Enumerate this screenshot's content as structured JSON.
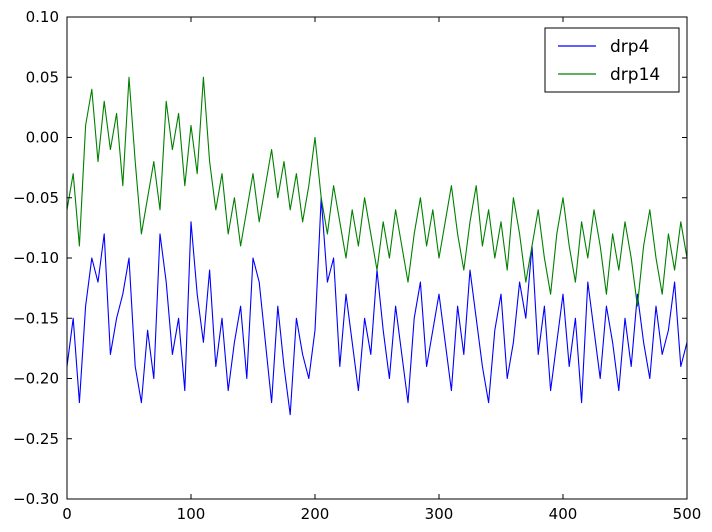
{
  "chart_data": {
    "type": "line",
    "title": "",
    "xlabel": "",
    "ylabel": "",
    "xlim": [
      0,
      500
    ],
    "ylim": [
      -0.3,
      0.1
    ],
    "x_ticks": [
      0,
      100,
      200,
      300,
      400,
      500
    ],
    "y_ticks": [
      -0.3,
      -0.25,
      -0.2,
      -0.15,
      -0.1,
      -0.05,
      0.0,
      0.05,
      0.1
    ],
    "x_tick_labels": [
      "0",
      "100",
      "200",
      "300",
      "400",
      "500"
    ],
    "y_tick_labels": [
      "−0.30",
      "−0.25",
      "−0.20",
      "−0.15",
      "−0.10",
      "−0.05",
      "0.00",
      "0.05",
      "0.10"
    ],
    "grid": false,
    "legend_position": "top-right",
    "sample_every": 5,
    "series": [
      {
        "name": "drp4",
        "color": "#0000ff",
        "x": [
          0,
          5,
          10,
          15,
          20,
          25,
          30,
          35,
          40,
          45,
          50,
          55,
          60,
          65,
          70,
          75,
          80,
          85,
          90,
          95,
          100,
          105,
          110,
          115,
          120,
          125,
          130,
          135,
          140,
          145,
          150,
          155,
          160,
          165,
          170,
          175,
          180,
          185,
          190,
          195,
          200,
          205,
          210,
          215,
          220,
          225,
          230,
          235,
          240,
          245,
          250,
          255,
          260,
          265,
          270,
          275,
          280,
          285,
          290,
          295,
          300,
          305,
          310,
          315,
          320,
          325,
          330,
          335,
          340,
          345,
          350,
          355,
          360,
          365,
          370,
          375,
          380,
          385,
          390,
          395,
          400,
          405,
          410,
          415,
          420,
          425,
          430,
          435,
          440,
          445,
          450,
          455,
          460,
          465,
          470,
          475,
          480,
          485,
          490,
          495,
          500
        ],
        "values": [
          -0.19,
          -0.15,
          -0.22,
          -0.14,
          -0.1,
          -0.12,
          -0.08,
          -0.18,
          -0.15,
          -0.13,
          -0.1,
          -0.19,
          -0.22,
          -0.16,
          -0.2,
          -0.08,
          -0.12,
          -0.18,
          -0.15,
          -0.21,
          -0.07,
          -0.13,
          -0.17,
          -0.11,
          -0.19,
          -0.15,
          -0.21,
          -0.17,
          -0.14,
          -0.2,
          -0.1,
          -0.12,
          -0.17,
          -0.22,
          -0.14,
          -0.19,
          -0.23,
          -0.15,
          -0.18,
          -0.2,
          -0.16,
          -0.05,
          -0.12,
          -0.1,
          -0.19,
          -0.13,
          -0.17,
          -0.21,
          -0.15,
          -0.18,
          -0.11,
          -0.16,
          -0.2,
          -0.14,
          -0.18,
          -0.22,
          -0.15,
          -0.12,
          -0.19,
          -0.16,
          -0.13,
          -0.17,
          -0.21,
          -0.14,
          -0.18,
          -0.11,
          -0.15,
          -0.19,
          -0.22,
          -0.16,
          -0.13,
          -0.2,
          -0.17,
          -0.12,
          -0.15,
          -0.09,
          -0.18,
          -0.14,
          -0.21,
          -0.17,
          -0.13,
          -0.19,
          -0.15,
          -0.22,
          -0.12,
          -0.16,
          -0.2,
          -0.14,
          -0.17,
          -0.21,
          -0.15,
          -0.19,
          -0.13,
          -0.17,
          -0.2,
          -0.14,
          -0.18,
          -0.16,
          -0.12,
          -0.19,
          -0.17
        ]
      },
      {
        "name": "drp14",
        "color": "#008000",
        "x": [
          0,
          5,
          10,
          15,
          20,
          25,
          30,
          35,
          40,
          45,
          50,
          55,
          60,
          65,
          70,
          75,
          80,
          85,
          90,
          95,
          100,
          105,
          110,
          115,
          120,
          125,
          130,
          135,
          140,
          145,
          150,
          155,
          160,
          165,
          170,
          175,
          180,
          185,
          190,
          195,
          200,
          205,
          210,
          215,
          220,
          225,
          230,
          235,
          240,
          245,
          250,
          255,
          260,
          265,
          270,
          275,
          280,
          285,
          290,
          295,
          300,
          305,
          310,
          315,
          320,
          325,
          330,
          335,
          340,
          345,
          350,
          355,
          360,
          365,
          370,
          375,
          380,
          385,
          390,
          395,
          400,
          405,
          410,
          415,
          420,
          425,
          430,
          435,
          440,
          445,
          450,
          455,
          460,
          465,
          470,
          475,
          480,
          485,
          490,
          495,
          500
        ],
        "values": [
          -0.06,
          -0.03,
          -0.09,
          0.01,
          0.04,
          -0.02,
          0.03,
          -0.01,
          0.02,
          -0.04,
          0.05,
          -0.02,
          -0.08,
          -0.05,
          -0.02,
          -0.06,
          0.03,
          -0.01,
          0.02,
          -0.04,
          0.01,
          -0.03,
          0.05,
          -0.02,
          -0.06,
          -0.03,
          -0.08,
          -0.05,
          -0.09,
          -0.06,
          -0.03,
          -0.07,
          -0.04,
          -0.01,
          -0.05,
          -0.02,
          -0.06,
          -0.03,
          -0.07,
          -0.04,
          0.0,
          -0.05,
          -0.08,
          -0.04,
          -0.07,
          -0.1,
          -0.06,
          -0.09,
          -0.05,
          -0.08,
          -0.11,
          -0.07,
          -0.1,
          -0.06,
          -0.09,
          -0.12,
          -0.08,
          -0.05,
          -0.09,
          -0.06,
          -0.1,
          -0.07,
          -0.04,
          -0.08,
          -0.11,
          -0.07,
          -0.04,
          -0.09,
          -0.06,
          -0.1,
          -0.07,
          -0.11,
          -0.05,
          -0.08,
          -0.12,
          -0.09,
          -0.06,
          -0.1,
          -0.13,
          -0.08,
          -0.05,
          -0.09,
          -0.12,
          -0.07,
          -0.1,
          -0.06,
          -0.09,
          -0.13,
          -0.08,
          -0.11,
          -0.07,
          -0.1,
          -0.14,
          -0.09,
          -0.06,
          -0.1,
          -0.13,
          -0.08,
          -0.11,
          -0.07,
          -0.1
        ]
      }
    ]
  }
}
